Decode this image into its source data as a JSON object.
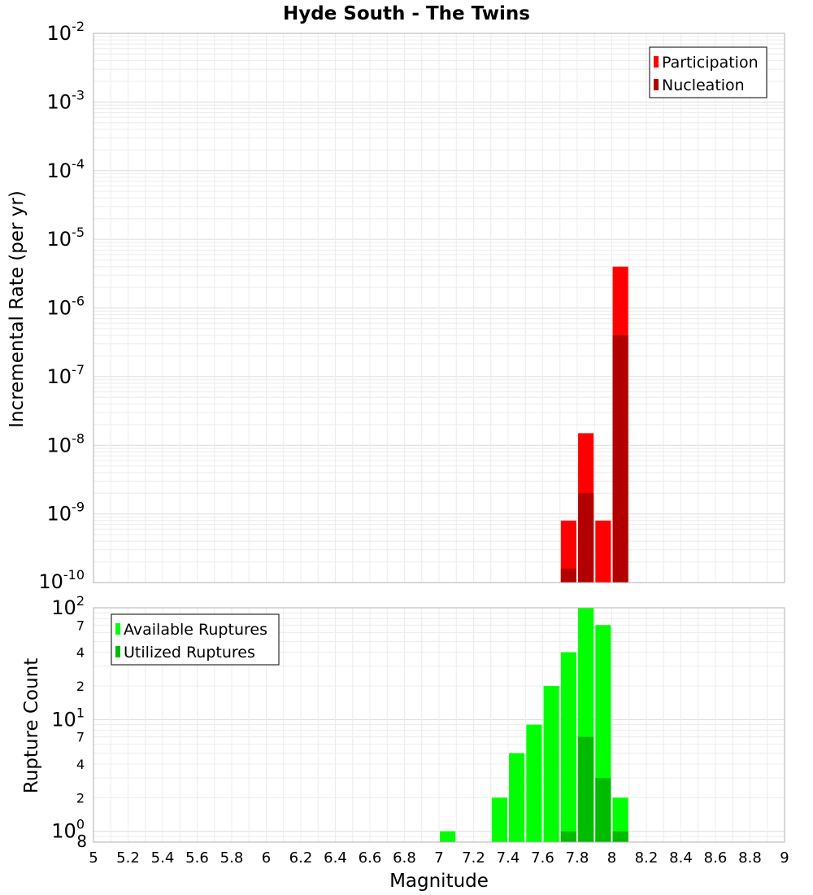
{
  "chart_data": [
    {
      "panel": "top",
      "type": "bar",
      "title": "Hyde South - The Twins",
      "xlabel": "",
      "ylabel": "Incremental Rate (per yr)",
      "yscale": "log",
      "ylim": [
        1e-10,
        0.01
      ],
      "xlim": [
        5,
        9
      ],
      "grid": true,
      "legend_position": "top-right",
      "y_ticks": [
        {
          "base": "10",
          "exp": "-10"
        },
        {
          "base": "10",
          "exp": "-9"
        },
        {
          "base": "10",
          "exp": "-8"
        },
        {
          "base": "10",
          "exp": "-7"
        },
        {
          "base": "10",
          "exp": "-6"
        },
        {
          "base": "10",
          "exp": "-5"
        },
        {
          "base": "10",
          "exp": "-4"
        },
        {
          "base": "10",
          "exp": "-3"
        },
        {
          "base": "10",
          "exp": "-2"
        }
      ],
      "bar_width": 0.09,
      "series": [
        {
          "name": "Participation",
          "color": "#ff0000",
          "x": [
            7.75,
            7.85,
            7.95,
            8.05
          ],
          "values": [
            8e-10,
            1.5e-08,
            8e-10,
            4e-06
          ]
        },
        {
          "name": "Nucleation",
          "color": "#b20000",
          "x": [
            7.75,
            7.85,
            8.05
          ],
          "values": [
            1.6e-10,
            2e-09,
            4e-07
          ]
        }
      ]
    },
    {
      "panel": "bottom",
      "type": "bar",
      "title": "",
      "xlabel": "Magnitude",
      "ylabel": "Rupture Count",
      "yscale": "log",
      "ylim": [
        0.8,
        100
      ],
      "xlim": [
        5,
        9
      ],
      "grid": true,
      "legend_position": "top-left",
      "x_ticks": [
        "5",
        "5.2",
        "5.4",
        "5.6",
        "5.8",
        "6",
        "6.2",
        "6.4",
        "6.6",
        "6.8",
        "7",
        "7.2",
        "7.4",
        "7.6",
        "7.8",
        "8",
        "8.2",
        "8.4",
        "8.6",
        "8.8",
        "9"
      ],
      "y_ticks": [
        {
          "value": 1,
          "base": "10",
          "exp": "0"
        },
        {
          "value": 2,
          "label": "2"
        },
        {
          "value": 4,
          "label": "4"
        },
        {
          "value": 7,
          "label": "7"
        },
        {
          "value": 10,
          "base": "10",
          "exp": "1"
        },
        {
          "value": 20,
          "label": "2"
        },
        {
          "value": 40,
          "label": "4"
        },
        {
          "value": 70,
          "label": "7"
        },
        {
          "value": 100,
          "base": "10",
          "exp": "2"
        }
      ],
      "y_min_label": "8",
      "bar_width": 0.09,
      "series": [
        {
          "name": "Available Ruptures",
          "color": "#00ff00",
          "x": [
            7.05,
            7.35,
            7.45,
            7.55,
            7.65,
            7.75,
            7.85,
            7.95,
            8.05
          ],
          "values": [
            1,
            2,
            5,
            9,
            20,
            40,
            100,
            70,
            2
          ]
        },
        {
          "name": "Utilized Ruptures",
          "color": "#00bb00",
          "x": [
            7.75,
            7.85,
            7.95,
            8.05
          ],
          "values": [
            1,
            7,
            3,
            1
          ]
        }
      ]
    }
  ]
}
